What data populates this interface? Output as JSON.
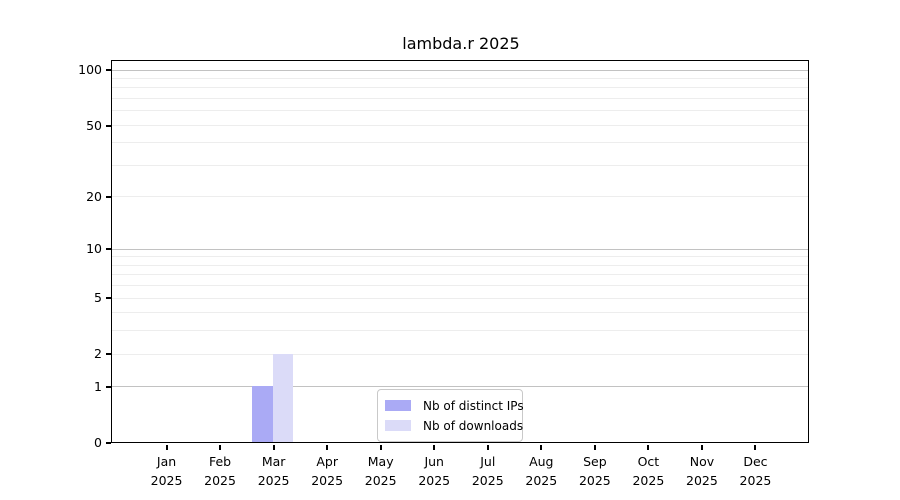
{
  "title": "lambda.r 2025",
  "chart_data": {
    "type": "bar",
    "title": "lambda.r 2025",
    "categories": [
      "Jan",
      "Feb",
      "Mar",
      "Apr",
      "May",
      "Jun",
      "Jul",
      "Aug",
      "Sep",
      "Oct",
      "Nov",
      "Dec"
    ],
    "year": "2025",
    "series": [
      {
        "name": "Nb of distinct IPs",
        "color": "#aaaaf5",
        "values": [
          0,
          0,
          1,
          0,
          0,
          0,
          0,
          0,
          0,
          0,
          0,
          0
        ]
      },
      {
        "name": "Nb of downloads",
        "color": "#dbdbf8",
        "values": [
          0,
          0,
          2,
          0,
          0,
          0,
          0,
          0,
          0,
          0,
          0,
          0
        ]
      }
    ],
    "y_scale": "log1p",
    "ylim": [
      0,
      111
    ],
    "y_ticks": [
      0,
      1,
      2,
      5,
      10,
      20,
      50,
      100
    ],
    "grid_major": [
      1,
      10,
      100
    ],
    "grid_minor": [
      2,
      3,
      4,
      5,
      6,
      7,
      8,
      9,
      20,
      30,
      40,
      50,
      60,
      70,
      80,
      90
    ],
    "grid": "horizontal",
    "legend_position": "bottom-center",
    "xlabel": "",
    "ylabel": ""
  },
  "legend": {
    "items": [
      {
        "label": "Nb of distinct IPs",
        "color": "#aaaaf5"
      },
      {
        "label": "Nb of downloads",
        "color": "#dbdbf8"
      }
    ]
  }
}
